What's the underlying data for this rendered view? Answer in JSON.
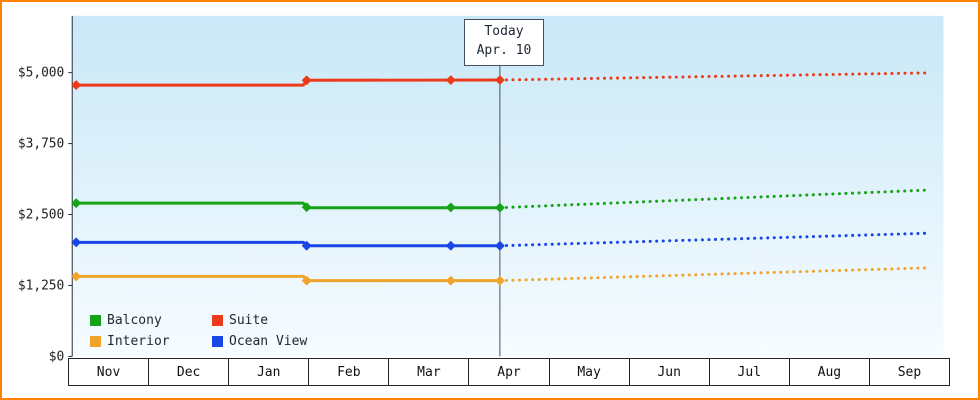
{
  "frame": {
    "border_color": "#ff8300"
  },
  "chart_data": {
    "type": "line",
    "title": "",
    "x_axis": {
      "months": [
        "Nov",
        "Dec",
        "Jan",
        "Feb",
        "Mar",
        "Apr",
        "May",
        "Jun",
        "Jul",
        "Aug",
        "Sep"
      ]
    },
    "y_axis": {
      "ylim": [
        0,
        6000
      ],
      "ticks": [
        0,
        1250,
        2500,
        3750,
        5000
      ],
      "labels": [
        "$0",
        "$1,250",
        "$2,500",
        "$3,750",
        "$5,000"
      ]
    },
    "today": {
      "line1": "Today",
      "line2": "Apr. 10",
      "x": 5.4
    },
    "plot_background": {
      "top": "#c9e8f7",
      "bottom": "#f7fcff"
    },
    "series": [
      {
        "name": "Suite",
        "color": "#ee3a1c",
        "style_history": "solid",
        "style_forecast": "dotted",
        "history": [
          [
            0.05,
            4780
          ],
          [
            2.92,
            4780
          ],
          [
            2.96,
            4865
          ],
          [
            5.4,
            4870
          ]
        ],
        "markers": [
          [
            0.05,
            4780
          ],
          [
            2.96,
            4865
          ],
          [
            4.78,
            4868
          ],
          [
            5.4,
            4870
          ]
        ],
        "forecast": [
          [
            5.4,
            4870
          ],
          [
            10.78,
            4995
          ]
        ]
      },
      {
        "name": "Balcony",
        "color": "#17a317",
        "style_history": "solid",
        "style_forecast": "dotted",
        "history": [
          [
            0.05,
            2700
          ],
          [
            2.92,
            2700
          ],
          [
            2.96,
            2620
          ],
          [
            5.4,
            2620
          ]
        ],
        "markers": [
          [
            0.05,
            2700
          ],
          [
            2.96,
            2630
          ],
          [
            4.78,
            2625
          ],
          [
            5.4,
            2620
          ]
        ],
        "forecast": [
          [
            5.4,
            2620
          ],
          [
            10.78,
            2930
          ]
        ]
      },
      {
        "name": "Ocean View",
        "color": "#1a46e8",
        "style_history": "solid",
        "style_forecast": "dotted",
        "history": [
          [
            0.05,
            2010
          ],
          [
            2.92,
            2010
          ],
          [
            2.96,
            1950
          ],
          [
            5.4,
            1950
          ]
        ],
        "markers": [
          [
            0.05,
            2010
          ],
          [
            2.96,
            1950
          ],
          [
            4.78,
            1950
          ],
          [
            5.4,
            1950
          ]
        ],
        "forecast": [
          [
            5.4,
            1950
          ],
          [
            10.78,
            2170
          ]
        ]
      },
      {
        "name": "Interior",
        "color": "#f0a42c",
        "style_history": "solid",
        "style_forecast": "dotted",
        "history": [
          [
            0.05,
            1410
          ],
          [
            2.92,
            1410
          ],
          [
            2.96,
            1335
          ],
          [
            5.4,
            1335
          ]
        ],
        "markers": [
          [
            0.05,
            1410
          ],
          [
            2.96,
            1335
          ],
          [
            4.78,
            1335
          ],
          [
            5.4,
            1335
          ]
        ],
        "forecast": [
          [
            5.4,
            1335
          ],
          [
            10.78,
            1560
          ]
        ]
      }
    ],
    "legend": [
      {
        "label": "Balcony",
        "color": "#17a317"
      },
      {
        "label": "Suite",
        "color": "#ee3a1c"
      },
      {
        "label": "Interior",
        "color": "#f0a42c"
      },
      {
        "label": "Ocean View",
        "color": "#1a46e8"
      }
    ],
    "legend_position": "bottom-left",
    "grid": false
  }
}
